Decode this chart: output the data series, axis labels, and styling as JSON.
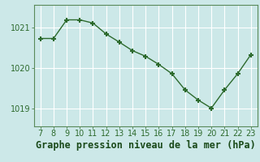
{
  "x": [
    7,
    8,
    9,
    10,
    11,
    12,
    13,
    14,
    15,
    16,
    17,
    18,
    19,
    20,
    21,
    22,
    23
  ],
  "y": [
    1020.72,
    1020.72,
    1021.18,
    1021.18,
    1021.1,
    1020.83,
    1020.63,
    1020.42,
    1020.28,
    1020.08,
    1019.85,
    1019.45,
    1019.2,
    1019.0,
    1019.45,
    1019.85,
    1020.32
  ],
  "line_color": "#2d6a2d",
  "marker": "+",
  "marker_size": 5,
  "marker_lw": 1.5,
  "bg_color": "#cce8e8",
  "grid_color": "#ffffff",
  "xlabel": "Graphe pression niveau de la mer (hPa)",
  "xlabel_color": "#1a4a1a",
  "xlabel_fontsize": 8.5,
  "tick_color": "#2d6a2d",
  "tick_fontsize": 7,
  "ylim": [
    1018.55,
    1021.55
  ],
  "yticks": [
    1019,
    1020,
    1021
  ],
  "xlim": [
    6.5,
    23.5
  ],
  "xticks": [
    7,
    8,
    9,
    10,
    11,
    12,
    13,
    14,
    15,
    16,
    17,
    18,
    19,
    20,
    21,
    22,
    23
  ],
  "spine_color": "#5a8a5a",
  "line_width": 1.0
}
